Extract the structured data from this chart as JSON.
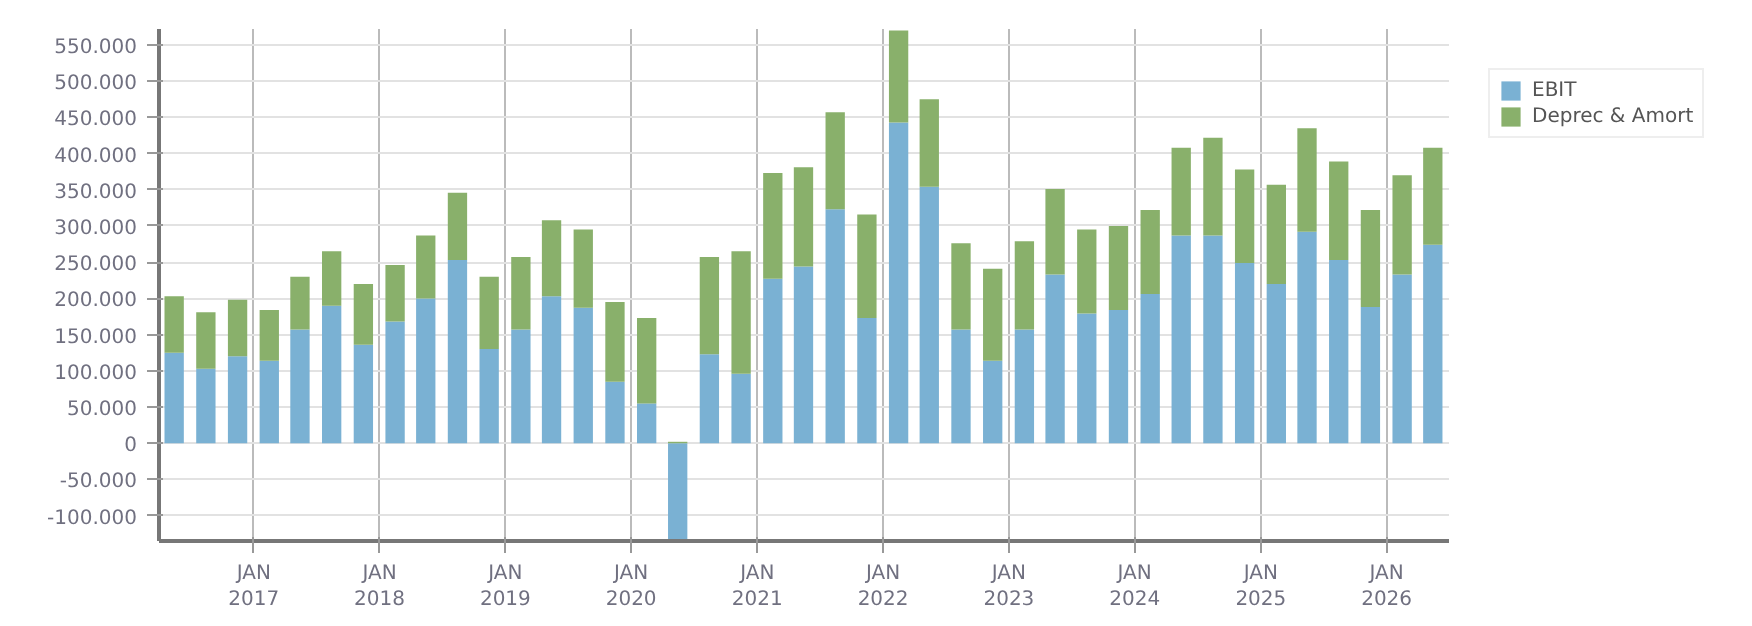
{
  "chart_data": {
    "type": "bar",
    "stacked": true,
    "x": [
      "2016-05-15",
      "2016-08-15",
      "2016-11-15",
      "2017-02-15",
      "2017-05-15",
      "2017-08-15",
      "2017-11-15",
      "2018-02-15",
      "2018-05-15",
      "2018-08-15",
      "2018-11-15",
      "2019-02-15",
      "2019-05-15",
      "2019-08-15",
      "2019-11-15",
      "2020-02-15",
      "2020-05-15",
      "2020-08-15",
      "2020-11-15",
      "2021-02-15",
      "2021-05-15",
      "2021-08-15",
      "2021-11-15",
      "2022-02-15",
      "2022-05-15",
      "2022-08-15",
      "2022-11-15",
      "2023-02-15",
      "2023-05-15",
      "2023-08-15",
      "2023-11-15",
      "2024-02-15",
      "2024-05-15",
      "2024-08-15",
      "2024-11-15",
      "2025-02-15",
      "2025-05-15",
      "2025-08-15",
      "2025-11-15",
      "2026-02-15",
      "2026-05-15"
    ],
    "series": [
      {
        "name": "EBIT",
        "color": "#7ab1d3",
        "values": [
          125000,
          103000,
          120000,
          114000,
          157000,
          190000,
          136000,
          168000,
          200000,
          253000,
          130000,
          157000,
          203000,
          187000,
          85000,
          55000,
          -135000,
          123000,
          96000,
          227000,
          244000,
          323000,
          173000,
          443000,
          354000,
          157000,
          114000,
          157000,
          233000,
          179000,
          184000,
          206000,
          287000,
          287000,
          249000,
          220000,
          292000,
          253000,
          188000,
          233000,
          274000
        ]
      },
      {
        "name": "Deprec & Amort",
        "color": "#89b06b",
        "values": [
          78000,
          78000,
          78000,
          70000,
          73000,
          75000,
          84000,
          78000,
          87000,
          93000,
          100000,
          100000,
          105000,
          108000,
          110000,
          118000,
          2000,
          134000,
          169000,
          146000,
          137000,
          134000,
          143000,
          127000,
          121000,
          119000,
          127000,
          122000,
          118000,
          116000,
          116000,
          116000,
          121000,
          135000,
          129000,
          137000,
          143000,
          136000,
          134000,
          137000,
          134000
        ]
      }
    ],
    "xlim": [
      "2016-04-01",
      "2026-07-01"
    ],
    "xticks": [
      {
        "value": "2017-01-01",
        "label": "JAN\n2017"
      },
      {
        "value": "2018-01-01",
        "label": "JAN\n2018"
      },
      {
        "value": "2019-01-01",
        "label": "JAN\n2019"
      },
      {
        "value": "2020-01-01",
        "label": "JAN\n2020"
      },
      {
        "value": "2021-01-01",
        "label": "JAN\n2021"
      },
      {
        "value": "2022-01-01",
        "label": "JAN\n2022"
      },
      {
        "value": "2023-01-01",
        "label": "JAN\n2023"
      },
      {
        "value": "2024-01-01",
        "label": "JAN\n2024"
      },
      {
        "value": "2025-01-01",
        "label": "JAN\n2025"
      },
      {
        "value": "2026-01-01",
        "label": "JAN\n2026"
      }
    ],
    "ylim": [
      -135000,
      572000
    ],
    "yticks": [
      {
        "value": -100000,
        "label": "-100.000"
      },
      {
        "value": -50000,
        "label": "-50.000"
      },
      {
        "value": 0,
        "label": "0"
      },
      {
        "value": 50000,
        "label": "50.000"
      },
      {
        "value": 100000,
        "label": "100.000"
      },
      {
        "value": 150000,
        "label": "150.000"
      },
      {
        "value": 200000,
        "label": "200.000"
      },
      {
        "value": 250000,
        "label": "250.000"
      },
      {
        "value": 300000,
        "label": "300.000"
      },
      {
        "value": 350000,
        "label": "350.000"
      },
      {
        "value": 400000,
        "label": "400.000"
      },
      {
        "value": 450000,
        "label": "450.000"
      },
      {
        "value": 500000,
        "label": "500.000"
      },
      {
        "value": 550000,
        "label": "550.000"
      }
    ],
    "grid": true,
    "legend": "top right"
  }
}
